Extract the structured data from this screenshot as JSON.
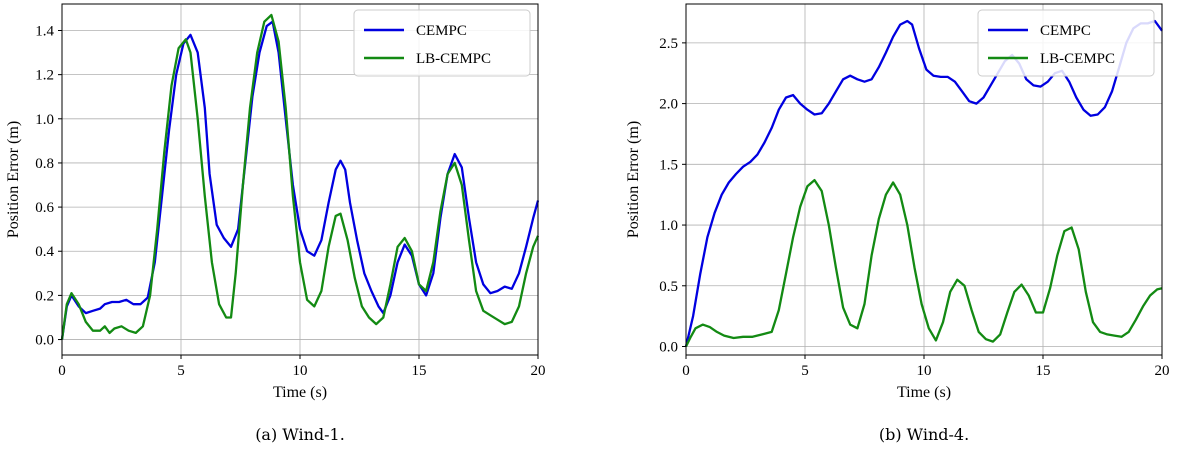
{
  "chart_data": [
    {
      "type": "line",
      "caption": "(a)  Wind-1.",
      "xlabel": "Time (s)",
      "ylabel": "Position Error (m)",
      "xlim": [
        0,
        20
      ],
      "ylim": [
        -0.07,
        1.52
      ],
      "xticks": [
        0,
        5,
        10,
        15,
        20
      ],
      "yticks": [
        0.0,
        0.2,
        0.4,
        0.6,
        0.8,
        1.0,
        1.2,
        1.4
      ],
      "ytick_labels": [
        "0.0",
        "0.2",
        "0.4",
        "0.6",
        "0.8",
        "1.0",
        "1.2",
        "1.4"
      ],
      "grid": true,
      "legend_position": "top-right",
      "series": [
        {
          "name": "CEMPC",
          "color": "#0000e0",
          "x": [
            0,
            0.2,
            0.4,
            0.7,
            1.0,
            1.3,
            1.6,
            1.8,
            2.1,
            2.4,
            2.7,
            3.0,
            3.3,
            3.6,
            3.9,
            4.2,
            4.5,
            4.8,
            5.1,
            5.4,
            5.7,
            6.0,
            6.2,
            6.5,
            6.8,
            7.1,
            7.4,
            7.7,
            8.0,
            8.3,
            8.6,
            8.85,
            9.1,
            9.4,
            9.7,
            10.0,
            10.3,
            10.6,
            10.9,
            11.2,
            11.5,
            11.7,
            11.9,
            12.1,
            12.4,
            12.7,
            13.0,
            13.3,
            13.5,
            13.8,
            14.1,
            14.4,
            14.7,
            15.0,
            15.3,
            15.6,
            15.9,
            16.2,
            16.5,
            16.8,
            17.1,
            17.4,
            17.7,
            18.0,
            18.3,
            18.6,
            18.9,
            19.2,
            19.5,
            19.8,
            20.0
          ],
          "values": [
            0.0,
            0.15,
            0.2,
            0.15,
            0.12,
            0.13,
            0.14,
            0.16,
            0.17,
            0.17,
            0.18,
            0.16,
            0.16,
            0.19,
            0.35,
            0.65,
            0.95,
            1.2,
            1.34,
            1.38,
            1.3,
            1.05,
            0.75,
            0.52,
            0.46,
            0.42,
            0.5,
            0.8,
            1.1,
            1.3,
            1.42,
            1.44,
            1.3,
            1.0,
            0.7,
            0.5,
            0.4,
            0.38,
            0.45,
            0.62,
            0.77,
            0.81,
            0.77,
            0.62,
            0.45,
            0.3,
            0.22,
            0.15,
            0.12,
            0.2,
            0.35,
            0.43,
            0.38,
            0.25,
            0.2,
            0.3,
            0.55,
            0.75,
            0.84,
            0.78,
            0.55,
            0.35,
            0.25,
            0.21,
            0.22,
            0.24,
            0.23,
            0.3,
            0.42,
            0.55,
            0.63
          ]
        },
        {
          "name": "LB-CEMPC",
          "color": "#138a13",
          "x": [
            0,
            0.2,
            0.4,
            0.7,
            1.0,
            1.3,
            1.6,
            1.8,
            2.0,
            2.2,
            2.5,
            2.8,
            3.1,
            3.4,
            3.7,
            4.0,
            4.3,
            4.6,
            4.9,
            5.2,
            5.4,
            5.7,
            6.0,
            6.3,
            6.6,
            6.9,
            7.1,
            7.3,
            7.6,
            7.9,
            8.2,
            8.5,
            8.8,
            9.1,
            9.4,
            9.7,
            10.0,
            10.3,
            10.6,
            10.9,
            11.2,
            11.5,
            11.7,
            12.0,
            12.3,
            12.6,
            12.9,
            13.2,
            13.5,
            13.8,
            14.1,
            14.4,
            14.7,
            15.0,
            15.3,
            15.6,
            15.9,
            16.2,
            16.5,
            16.8,
            17.1,
            17.4,
            17.7,
            18.0,
            18.3,
            18.6,
            18.9,
            19.2,
            19.5,
            19.8,
            20.0
          ],
          "values": [
            0.0,
            0.16,
            0.21,
            0.16,
            0.08,
            0.04,
            0.04,
            0.06,
            0.03,
            0.05,
            0.06,
            0.04,
            0.03,
            0.06,
            0.2,
            0.5,
            0.85,
            1.15,
            1.32,
            1.36,
            1.3,
            1.0,
            0.65,
            0.35,
            0.16,
            0.1,
            0.1,
            0.3,
            0.7,
            1.05,
            1.3,
            1.44,
            1.47,
            1.35,
            1.05,
            0.65,
            0.35,
            0.18,
            0.15,
            0.22,
            0.42,
            0.56,
            0.57,
            0.45,
            0.28,
            0.15,
            0.1,
            0.07,
            0.1,
            0.25,
            0.42,
            0.46,
            0.4,
            0.25,
            0.22,
            0.35,
            0.58,
            0.75,
            0.8,
            0.7,
            0.45,
            0.22,
            0.13,
            0.11,
            0.09,
            0.07,
            0.08,
            0.15,
            0.3,
            0.42,
            0.47
          ]
        }
      ]
    },
    {
      "type": "line",
      "caption": "(b)  Wind-4.",
      "xlabel": "Time (s)",
      "ylabel": "Position Error (m)",
      "xlim": [
        0,
        20
      ],
      "ylim": [
        -0.07,
        2.82
      ],
      "xticks": [
        0,
        5,
        10,
        15,
        20
      ],
      "yticks": [
        0.0,
        0.5,
        1.0,
        1.5,
        2.0,
        2.5
      ],
      "ytick_labels": [
        "0.0",
        "0.5",
        "1.0",
        "1.5",
        "2.0",
        "2.5"
      ],
      "grid": true,
      "legend_position": "top-right",
      "series": [
        {
          "name": "CEMPC",
          "color": "#0000e0",
          "x": [
            0,
            0.3,
            0.6,
            0.9,
            1.2,
            1.5,
            1.8,
            2.1,
            2.4,
            2.7,
            3.0,
            3.3,
            3.6,
            3.9,
            4.2,
            4.5,
            4.8,
            5.1,
            5.4,
            5.7,
            6.0,
            6.3,
            6.6,
            6.9,
            7.2,
            7.5,
            7.8,
            8.1,
            8.4,
            8.7,
            9.0,
            9.3,
            9.5,
            9.8,
            10.1,
            10.4,
            10.7,
            11.0,
            11.3,
            11.6,
            11.9,
            12.2,
            12.5,
            12.8,
            13.1,
            13.4,
            13.7,
            14.0,
            14.3,
            14.6,
            14.9,
            15.2,
            15.5,
            15.8,
            16.1,
            16.4,
            16.7,
            17.0,
            17.3,
            17.6,
            17.9,
            18.2,
            18.5,
            18.8,
            19.1,
            19.4,
            19.7,
            20.0
          ],
          "values": [
            0.0,
            0.25,
            0.6,
            0.9,
            1.1,
            1.25,
            1.35,
            1.42,
            1.48,
            1.52,
            1.58,
            1.68,
            1.8,
            1.95,
            2.05,
            2.07,
            2.0,
            1.95,
            1.91,
            1.92,
            2.0,
            2.1,
            2.2,
            2.23,
            2.2,
            2.18,
            2.2,
            2.3,
            2.42,
            2.55,
            2.65,
            2.68,
            2.65,
            2.45,
            2.28,
            2.23,
            2.22,
            2.22,
            2.18,
            2.1,
            2.02,
            2.0,
            2.05,
            2.15,
            2.25,
            2.35,
            2.4,
            2.33,
            2.2,
            2.15,
            2.14,
            2.18,
            2.25,
            2.27,
            2.18,
            2.05,
            1.95,
            1.9,
            1.91,
            1.97,
            2.1,
            2.3,
            2.5,
            2.62,
            2.66,
            2.66,
            2.68,
            2.6
          ]
        },
        {
          "name": "LB-CEMPC",
          "color": "#138a13",
          "x": [
            0,
            0.2,
            0.4,
            0.7,
            1.0,
            1.3,
            1.6,
            2.0,
            2.4,
            2.8,
            3.2,
            3.6,
            3.9,
            4.2,
            4.5,
            4.8,
            5.1,
            5.4,
            5.7,
            6.0,
            6.3,
            6.6,
            6.9,
            7.2,
            7.5,
            7.8,
            8.1,
            8.4,
            8.7,
            9.0,
            9.3,
            9.6,
            9.9,
            10.2,
            10.5,
            10.8,
            11.1,
            11.4,
            11.7,
            12.0,
            12.3,
            12.6,
            12.9,
            13.2,
            13.5,
            13.8,
            14.1,
            14.4,
            14.7,
            15.0,
            15.3,
            15.6,
            15.9,
            16.2,
            16.5,
            16.8,
            17.1,
            17.4,
            17.7,
            18.0,
            18.3,
            18.6,
            18.9,
            19.2,
            19.5,
            19.8,
            20.0
          ],
          "values": [
            0.0,
            0.08,
            0.15,
            0.18,
            0.16,
            0.12,
            0.09,
            0.07,
            0.08,
            0.08,
            0.1,
            0.12,
            0.3,
            0.6,
            0.9,
            1.15,
            1.32,
            1.37,
            1.28,
            1.0,
            0.65,
            0.32,
            0.18,
            0.15,
            0.35,
            0.75,
            1.05,
            1.25,
            1.35,
            1.25,
            1.0,
            0.65,
            0.35,
            0.15,
            0.05,
            0.2,
            0.45,
            0.55,
            0.5,
            0.3,
            0.12,
            0.06,
            0.04,
            0.1,
            0.28,
            0.45,
            0.51,
            0.42,
            0.28,
            0.28,
            0.48,
            0.75,
            0.95,
            0.98,
            0.8,
            0.45,
            0.2,
            0.12,
            0.1,
            0.09,
            0.08,
            0.12,
            0.22,
            0.33,
            0.42,
            0.47,
            0.48
          ]
        }
      ]
    }
  ]
}
